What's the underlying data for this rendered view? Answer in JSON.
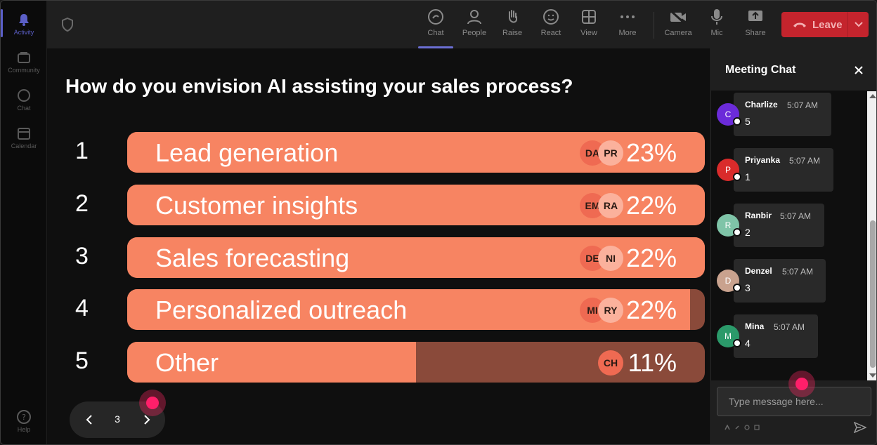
{
  "rail": {
    "items": [
      {
        "label": "Activity",
        "icon": "bell-icon",
        "active": true
      },
      {
        "label": "Community",
        "icon": "community-icon",
        "active": false
      },
      {
        "label": "Chat",
        "icon": "chat-icon",
        "active": false
      },
      {
        "label": "Calendar",
        "icon": "calendar-icon",
        "active": false
      }
    ],
    "help": {
      "label": "Help",
      "icon": "help-icon"
    }
  },
  "toolbar": {
    "chat_label": "Chat",
    "people_label": "People",
    "raise_label": "Raise",
    "react_label": "React",
    "view_label": "View",
    "more_label": "More",
    "camera_label": "Camera",
    "mic_label": "Mic",
    "share_label": "Share",
    "leave_label": "Leave"
  },
  "poll": {
    "question": "How do you envision AI assisting your sales process?",
    "options": [
      {
        "number": "1",
        "label": "Lead generation",
        "percent_label": "23%",
        "fill_fraction": 1.0,
        "avatars": [
          "DA",
          "PR"
        ]
      },
      {
        "number": "2",
        "label": "Customer insights",
        "percent_label": "22%",
        "fill_fraction": 1.0,
        "avatars": [
          "EM",
          "RA"
        ]
      },
      {
        "number": "3",
        "label": "Sales forecasting",
        "percent_label": "22%",
        "fill_fraction": 1.0,
        "avatars": [
          "DE",
          "NI"
        ]
      },
      {
        "number": "4",
        "label": "Personalized outreach",
        "percent_label": "22%",
        "fill_fraction": 0.975,
        "avatars": [
          "MI",
          "RY"
        ]
      },
      {
        "number": "5",
        "label": "Other",
        "percent_label": "11%",
        "fill_fraction": 0.5,
        "avatars": [
          "CH"
        ]
      }
    ],
    "page": "3"
  },
  "chat": {
    "title": "Meeting Chat",
    "messages": [
      {
        "initial": "C",
        "name": "Charlize",
        "time": "5:07 AM",
        "text": "5",
        "color": "#6b2bd9"
      },
      {
        "initial": "P",
        "name": "Priyanka",
        "time": "5:07 AM",
        "text": "1",
        "color": "#d92b2b"
      },
      {
        "initial": "R",
        "name": "Ranbir",
        "time": "5:07 AM",
        "text": "2",
        "color": "#7fc4a8"
      },
      {
        "initial": "D",
        "name": "Denzel",
        "time": "5:07 AM",
        "text": "3",
        "color": "#c9a28e"
      },
      {
        "initial": "M",
        "name": "Mina",
        "time": "5:07 AM",
        "text": "4",
        "color": "#2b9a6a"
      }
    ],
    "input_placeholder": "Type message here..."
  },
  "colors": {
    "accent": "#5b5fc7",
    "leave": "#c4242d",
    "bar_fill": "#f78462",
    "bar_track": "#8a4a3a",
    "cursor": "#ff1f6a"
  }
}
